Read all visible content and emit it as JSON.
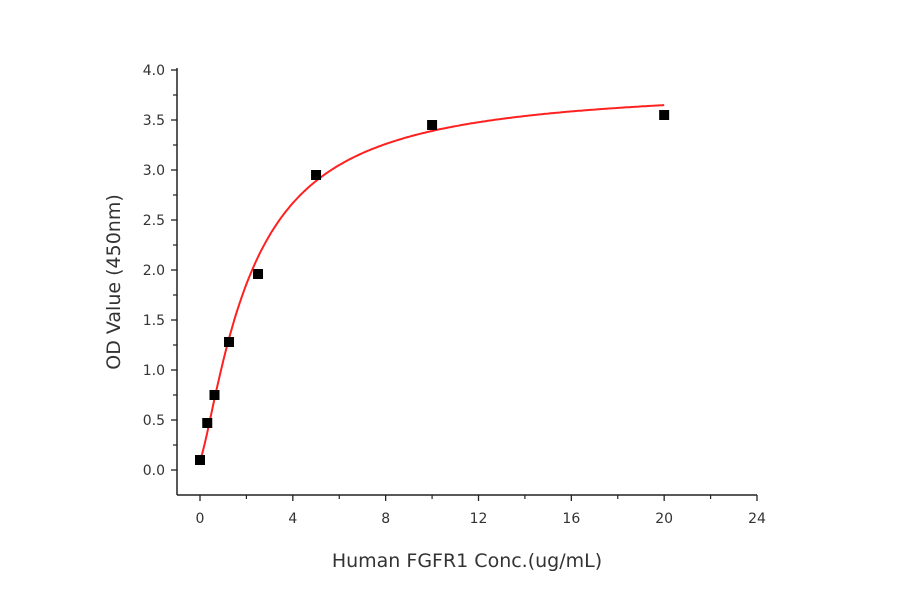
{
  "chart_data": {
    "type": "scatter",
    "title": "",
    "xlabel": "Human FGFR1 Conc.(ug/mL)",
    "ylabel": "OD Value (450nm)",
    "xlim": [
      -1,
      24
    ],
    "ylim": [
      -0.25,
      4.0
    ],
    "xticks": [
      0,
      4,
      8,
      12,
      16,
      20,
      24
    ],
    "xtick_labels": [
      "0",
      "4",
      "8",
      "12",
      "16",
      "20",
      "24"
    ],
    "yticks": [
      0,
      0.5,
      1.0,
      1.5,
      2.0,
      2.5,
      3.0,
      3.5,
      4.0
    ],
    "ytick_labels": [
      "0.0",
      "0.5",
      "1.0",
      "1.5",
      "2.0",
      "2.5",
      "3.0",
      "3.5",
      "4.0"
    ],
    "grid": false,
    "series": [
      {
        "name": "data",
        "marker": "square",
        "color": "#000000",
        "x": [
          0,
          0.3125,
          0.625,
          1.25,
          2.5,
          5,
          10,
          20
        ],
        "y": [
          0.1,
          0.47,
          0.75,
          1.28,
          1.96,
          2.95,
          3.45,
          3.55
        ]
      },
      {
        "name": "fit",
        "type": "line",
        "color": "#ff2020",
        "model": "four-parameter logistic",
        "params": {
          "bottom": 0.1,
          "top": 3.85,
          "ec50": 2.2,
          "hill": 1.3
        },
        "x_range": [
          0,
          20
        ]
      }
    ]
  }
}
